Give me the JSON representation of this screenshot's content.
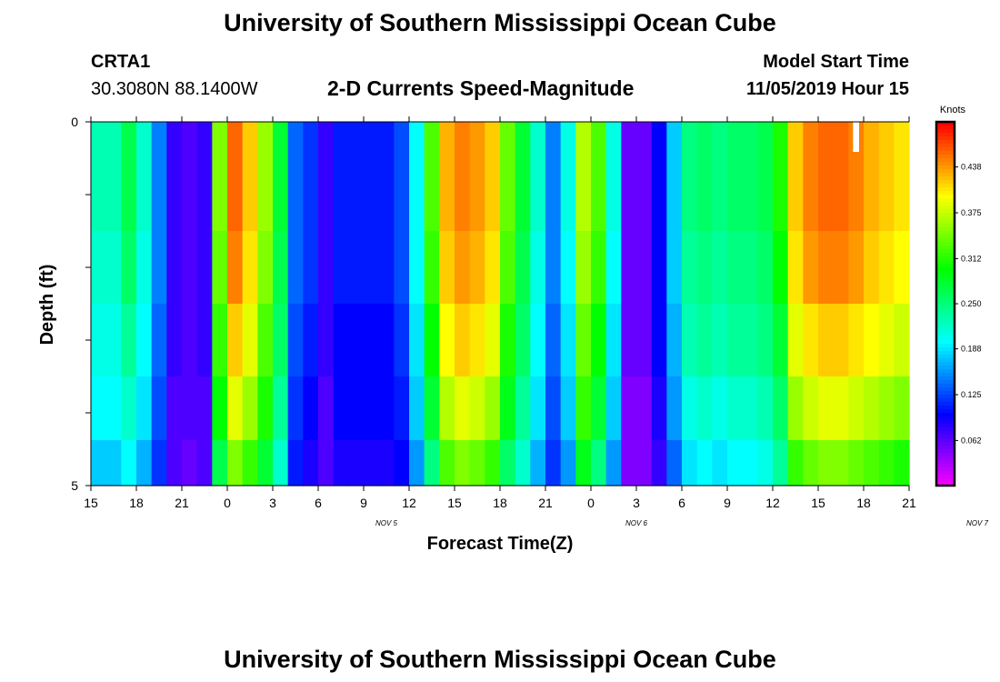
{
  "header": {
    "title": "University of Southern Mississippi Ocean Cube",
    "station": "CRTA1",
    "coords": "30.3080N 88.1400W",
    "chart_title": "2-D Currents Speed-Magnitude",
    "start_label": "Model Start Time",
    "start_value": "11/05/2019 Hour 15"
  },
  "footer": {
    "title": "University of Southern Mississippi Ocean Cube"
  },
  "chart_data": {
    "type": "heatmap",
    "title": "2-D Currents Speed-Magnitude",
    "xlabel": "Forecast Time(Z)",
    "ylabel": "Depth (ft)",
    "colorbar_label": "Knots",
    "colorbar_ticks": [
      "0.062",
      "0.125",
      "0.188",
      "0.250",
      "0.312",
      "0.375",
      "0.438"
    ],
    "color_range": [
      0,
      0.5
    ],
    "x_tick_labels": [
      "15",
      "18",
      "21",
      "0",
      "3",
      "6",
      "9",
      "12",
      "15",
      "18",
      "21",
      "0",
      "3",
      "6",
      "9",
      "12",
      "15",
      "18",
      "21"
    ],
    "day_labels": [
      {
        "label": "NOV 5",
        "hour": 19.5
      },
      {
        "label": "NOV 6",
        "hour": 36
      },
      {
        "label": "NOV 7",
        "hour": 58.5
      }
    ],
    "y_tick_labels": {
      "top": "0",
      "bottom": "5"
    },
    "ylim": [
      0,
      5
    ],
    "xlim_hours_from_start": [
      0,
      54
    ],
    "depth_bins_ft": [
      0.5,
      1,
      2,
      3,
      4,
      4.75
    ],
    "time_hours_from_start": [
      0,
      1,
      2,
      3,
      4,
      5,
      6,
      7,
      8,
      9,
      10,
      11,
      12,
      13,
      14,
      15,
      16,
      17,
      18,
      19,
      20,
      21,
      22,
      23,
      24,
      25,
      26,
      27,
      28,
      29,
      30,
      31,
      32,
      33,
      34,
      35,
      36,
      37,
      38,
      39,
      40,
      41,
      42,
      43,
      44,
      45,
      46,
      47,
      48,
      49,
      50,
      51,
      52,
      53
    ],
    "speed_knots_by_depth": [
      [
        0.23,
        0.23,
        0.27,
        0.22,
        0.15,
        0.08,
        0.07,
        0.08,
        0.35,
        0.46,
        0.42,
        0.36,
        0.28,
        0.14,
        0.12,
        0.08,
        0.11,
        0.11,
        0.11,
        0.11,
        0.13,
        0.2,
        0.33,
        0.43,
        0.45,
        0.44,
        0.42,
        0.34,
        0.28,
        0.22,
        0.15,
        0.21,
        0.37,
        0.33,
        0.21,
        0.06,
        0.06,
        0.1,
        0.18,
        0.25,
        0.26,
        0.25,
        0.26,
        0.26,
        0.27,
        0.31,
        0.42,
        0.45,
        0.46,
        0.46,
        0.45,
        0.43,
        0.42,
        0.41
      ],
      [
        0.23,
        0.23,
        0.27,
        0.22,
        0.15,
        0.08,
        0.07,
        0.08,
        0.35,
        0.46,
        0.42,
        0.36,
        0.28,
        0.14,
        0.12,
        0.08,
        0.11,
        0.11,
        0.11,
        0.11,
        0.13,
        0.2,
        0.33,
        0.43,
        0.45,
        0.44,
        0.42,
        0.34,
        0.28,
        0.22,
        0.15,
        0.21,
        0.37,
        0.33,
        0.21,
        0.06,
        0.06,
        0.1,
        0.18,
        0.25,
        0.26,
        0.25,
        0.26,
        0.26,
        0.27,
        0.31,
        0.42,
        0.45,
        0.46,
        0.46,
        0.45,
        0.43,
        0.42,
        0.41
      ],
      [
        0.22,
        0.22,
        0.26,
        0.21,
        0.15,
        0.08,
        0.07,
        0.08,
        0.34,
        0.45,
        0.41,
        0.35,
        0.27,
        0.14,
        0.12,
        0.08,
        0.11,
        0.11,
        0.11,
        0.11,
        0.13,
        0.2,
        0.32,
        0.42,
        0.44,
        0.43,
        0.41,
        0.33,
        0.27,
        0.21,
        0.15,
        0.2,
        0.36,
        0.32,
        0.2,
        0.06,
        0.06,
        0.1,
        0.18,
        0.24,
        0.25,
        0.24,
        0.25,
        0.25,
        0.26,
        0.3,
        0.41,
        0.44,
        0.45,
        0.45,
        0.44,
        0.42,
        0.41,
        0.4
      ],
      [
        0.21,
        0.21,
        0.24,
        0.2,
        0.14,
        0.08,
        0.07,
        0.08,
        0.32,
        0.42,
        0.39,
        0.33,
        0.26,
        0.13,
        0.11,
        0.08,
        0.1,
        0.1,
        0.1,
        0.1,
        0.12,
        0.19,
        0.3,
        0.4,
        0.42,
        0.41,
        0.39,
        0.31,
        0.26,
        0.2,
        0.14,
        0.19,
        0.34,
        0.3,
        0.19,
        0.06,
        0.06,
        0.1,
        0.17,
        0.23,
        0.24,
        0.23,
        0.24,
        0.24,
        0.25,
        0.28,
        0.39,
        0.41,
        0.42,
        0.42,
        0.41,
        0.4,
        0.39,
        0.38
      ],
      [
        0.2,
        0.2,
        0.22,
        0.19,
        0.13,
        0.07,
        0.07,
        0.07,
        0.3,
        0.39,
        0.36,
        0.31,
        0.24,
        0.12,
        0.1,
        0.07,
        0.1,
        0.1,
        0.1,
        0.1,
        0.11,
        0.18,
        0.28,
        0.37,
        0.39,
        0.38,
        0.36,
        0.29,
        0.24,
        0.19,
        0.13,
        0.18,
        0.32,
        0.28,
        0.18,
        0.05,
        0.05,
        0.09,
        0.16,
        0.21,
        0.22,
        0.21,
        0.22,
        0.22,
        0.23,
        0.26,
        0.36,
        0.38,
        0.39,
        0.39,
        0.38,
        0.37,
        0.36,
        0.35
      ],
      [
        0.18,
        0.18,
        0.2,
        0.17,
        0.12,
        0.07,
        0.06,
        0.07,
        0.27,
        0.35,
        0.32,
        0.28,
        0.22,
        0.11,
        0.09,
        0.07,
        0.09,
        0.09,
        0.09,
        0.09,
        0.1,
        0.16,
        0.25,
        0.33,
        0.35,
        0.34,
        0.32,
        0.26,
        0.22,
        0.17,
        0.12,
        0.16,
        0.29,
        0.25,
        0.16,
        0.05,
        0.05,
        0.08,
        0.14,
        0.19,
        0.2,
        0.19,
        0.2,
        0.2,
        0.21,
        0.24,
        0.32,
        0.34,
        0.35,
        0.35,
        0.34,
        0.33,
        0.32,
        0.31
      ]
    ],
    "missing_cell": {
      "hour": 50,
      "depth_bin_ft": 0.5
    },
    "grid": false
  }
}
